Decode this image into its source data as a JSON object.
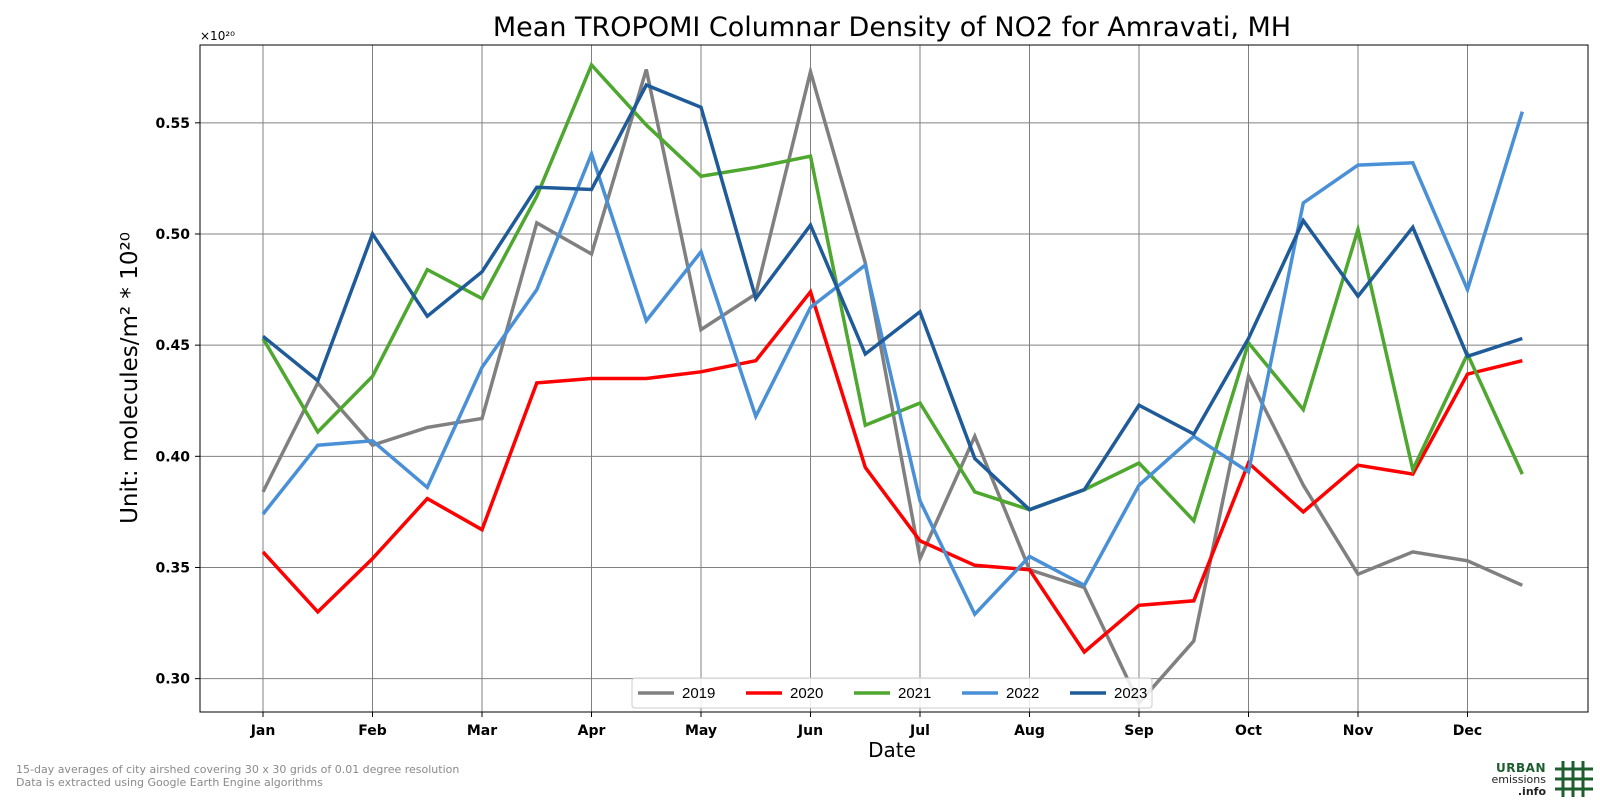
{
  "chart_data": {
    "type": "line",
    "title": "Mean TROPOMI Columnar Density of NO2 for Amravati, MH",
    "xlabel": "Date",
    "ylabel": "Unit: molecules/m² * 10²⁰",
    "offset_label": "×10²⁰",
    "x_tick_labels": [
      "Jan",
      "Feb",
      "Mar",
      "Apr",
      "May",
      "Jun",
      "Jul",
      "Aug",
      "Sep",
      "Oct",
      "Nov",
      "Dec"
    ],
    "y_ticks": [
      0.3,
      0.35,
      0.4,
      0.45,
      0.5,
      0.55
    ],
    "y_tick_labels": [
      "0.30",
      "0.35",
      "0.40",
      "0.45",
      "0.50",
      "0.55"
    ],
    "ylim": [
      0.285,
      0.585
    ],
    "grid": true,
    "legend_position": "bottom-center",
    "x": [
      "Jan 1",
      "Jan 15",
      "Feb 1",
      "Feb 15",
      "Mar 1",
      "Mar 15",
      "Apr 1",
      "Apr 15",
      "May 1",
      "May 15",
      "Jun 1",
      "Jun 15",
      "Jul 1",
      "Jul 15",
      "Aug 1",
      "Aug 15",
      "Sep 1",
      "Sep 15",
      "Oct 1",
      "Oct 15",
      "Nov 1",
      "Nov 15",
      "Dec 1",
      "Dec 15"
    ],
    "series": [
      {
        "name": "2019",
        "color": "#808080",
        "values": [
          0.384,
          0.433,
          0.405,
          0.413,
          0.417,
          0.505,
          0.491,
          0.574,
          0.457,
          0.473,
          0.573,
          0.487,
          0.354,
          0.409,
          0.349,
          0.341,
          0.289,
          0.317,
          0.436,
          0.387,
          0.347,
          0.357,
          0.353,
          0.342
        ]
      },
      {
        "name": "2020",
        "color": "#ff0000",
        "values": [
          0.357,
          0.33,
          0.354,
          0.381,
          0.367,
          0.433,
          0.435,
          0.435,
          0.438,
          0.443,
          0.474,
          0.395,
          0.362,
          0.351,
          0.349,
          0.312,
          0.333,
          0.335,
          0.397,
          0.375,
          0.396,
          0.392,
          0.437,
          0.443
        ]
      },
      {
        "name": "2021",
        "color": "#4ea72e",
        "values": [
          0.453,
          0.411,
          0.436,
          0.484,
          0.471,
          0.517,
          0.576,
          0.549,
          0.526,
          0.53,
          0.535,
          0.414,
          0.424,
          0.384,
          0.376,
          0.385,
          0.397,
          0.371,
          0.451,
          0.421,
          0.502,
          0.394,
          0.446,
          0.392
        ]
      },
      {
        "name": "2022",
        "color": "#4a90d6",
        "values": [
          0.374,
          0.405,
          0.407,
          0.386,
          0.44,
          0.475,
          0.536,
          0.461,
          0.492,
          0.418,
          0.467,
          0.486,
          0.38,
          0.329,
          0.355,
          0.342,
          0.387,
          0.409,
          0.393,
          0.514,
          0.531,
          0.532,
          0.475,
          0.555
        ]
      },
      {
        "name": "2023",
        "color": "#1f5b99",
        "values": [
          0.454,
          0.434,
          0.5,
          0.463,
          0.483,
          0.521,
          0.52,
          0.567,
          0.557,
          0.471,
          0.504,
          0.446,
          0.465,
          0.399,
          0.376,
          0.385,
          0.423,
          0.41,
          0.453,
          0.506,
          0.472,
          0.503,
          0.445,
          0.453
        ]
      }
    ]
  },
  "footnote": {
    "line1": "15-day averages of city airshed covering 30 x 30 grids of 0.01 degree resolution",
    "line2": "Data is extracted using Google Earth Engine algorithms"
  },
  "logo": {
    "line1": "URBAN",
    "line2": "emissions",
    "line3": ".info",
    "color": "#1c5e2e"
  }
}
